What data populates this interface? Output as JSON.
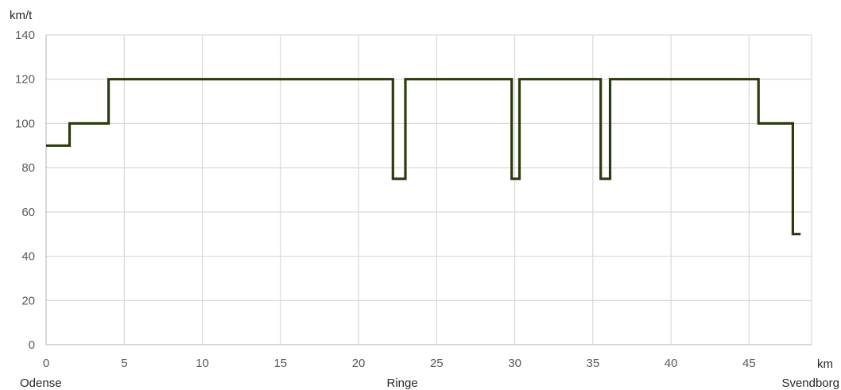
{
  "chart_data": {
    "type": "line",
    "step": true,
    "ylabel": "km/t",
    "xlabel": "km",
    "xlim": [
      0,
      49
    ],
    "ylim": [
      0,
      140
    ],
    "xticks": [
      0,
      5,
      10,
      15,
      20,
      25,
      30,
      35,
      40,
      45
    ],
    "yticks": [
      0,
      20,
      40,
      60,
      80,
      100,
      120,
      140
    ],
    "grid": true,
    "line_color": "#2b3a0f",
    "stations": [
      {
        "name": "Odense",
        "km": 0
      },
      {
        "name": "Ringe",
        "km": 22.8
      },
      {
        "name": "Svendborg",
        "km": 48
      }
    ],
    "series": [
      {
        "x": [
          0,
          1.5,
          1.5,
          4,
          4,
          22.2,
          22.2,
          23,
          23,
          29.8,
          29.8,
          30.3,
          30.3,
          35.5,
          35.5,
          36.1,
          36.1,
          45.6,
          45.6,
          47.8,
          47.8,
          48.3
        ],
        "y": [
          90,
          90,
          100,
          100,
          120,
          120,
          75,
          75,
          120,
          120,
          75,
          75,
          120,
          120,
          75,
          75,
          120,
          120,
          100,
          100,
          50,
          50
        ]
      }
    ]
  }
}
